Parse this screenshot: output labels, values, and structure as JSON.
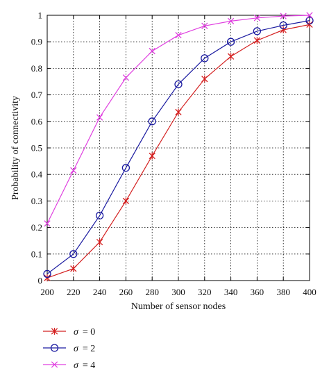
{
  "chart_data": {
    "type": "line",
    "xlabel": "Number of sensor nodes",
    "ylabel": "Probability of connectivity",
    "xlim": [
      200,
      400
    ],
    "ylim": [
      0,
      1
    ],
    "grid": true,
    "legend_position": "bottom-left, outside plot",
    "x": [
      200,
      220,
      240,
      260,
      280,
      300,
      320,
      340,
      360,
      380,
      400
    ],
    "x_ticks": [
      "200",
      "220",
      "240",
      "260",
      "280",
      "300",
      "320",
      "340",
      "360",
      "380",
      "400"
    ],
    "y_ticks": [
      "0",
      "0.1",
      "0.2",
      "0.3",
      "0.4",
      "0.5",
      "0.6",
      "0.7",
      "0.8",
      "0.9",
      "1"
    ],
    "series": [
      {
        "symbol": "σ",
        "value_text": "= 0",
        "color": "#d42020",
        "marker": "star",
        "values": [
          0.01,
          0.045,
          0.145,
          0.3,
          0.47,
          0.635,
          0.76,
          0.845,
          0.905,
          0.945,
          0.965
        ]
      },
      {
        "symbol": "σ",
        "value_text": "= 2",
        "color": "#1a1aa0",
        "marker": "circle",
        "values": [
          0.025,
          0.1,
          0.245,
          0.425,
          0.6,
          0.74,
          0.838,
          0.9,
          0.94,
          0.962,
          0.98
        ]
      },
      {
        "symbol": "σ",
        "value_text": "= 4",
        "color": "#e040e0",
        "marker": "x",
        "values": [
          0.215,
          0.415,
          0.615,
          0.765,
          0.865,
          0.925,
          0.96,
          0.978,
          0.99,
          0.997,
          1.0
        ]
      }
    ]
  }
}
